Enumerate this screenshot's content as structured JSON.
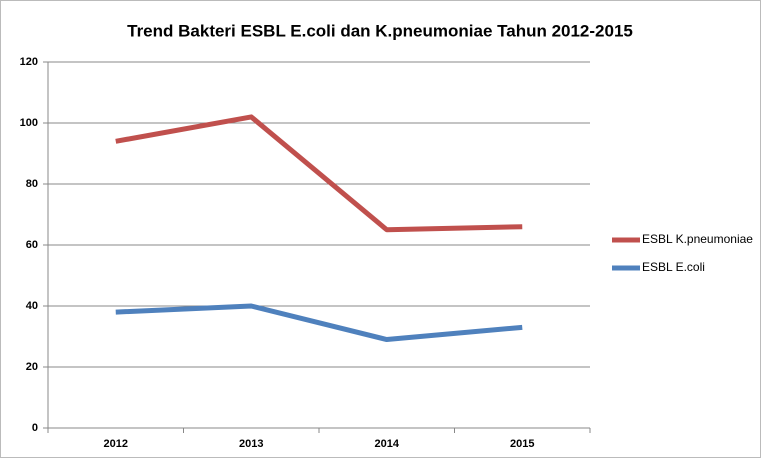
{
  "chart_data": {
    "type": "line",
    "title": "Trend Bakteri ESBL E.coli dan K.pneumoniae Tahun 2012-2015",
    "categories": [
      "2012",
      "2013",
      "2014",
      "2015"
    ],
    "series": [
      {
        "name": "ESBL K.pneumoniae",
        "color": "#c0504d",
        "values": [
          94,
          102,
          65,
          66
        ]
      },
      {
        "name": "ESBL E.coli",
        "color": "#4f81bd",
        "values": [
          38,
          40,
          29,
          33
        ]
      }
    ],
    "ylim": [
      0,
      120
    ],
    "yticks": [
      0,
      20,
      40,
      60,
      80,
      100,
      120
    ],
    "grid": true,
    "legend": "right"
  }
}
